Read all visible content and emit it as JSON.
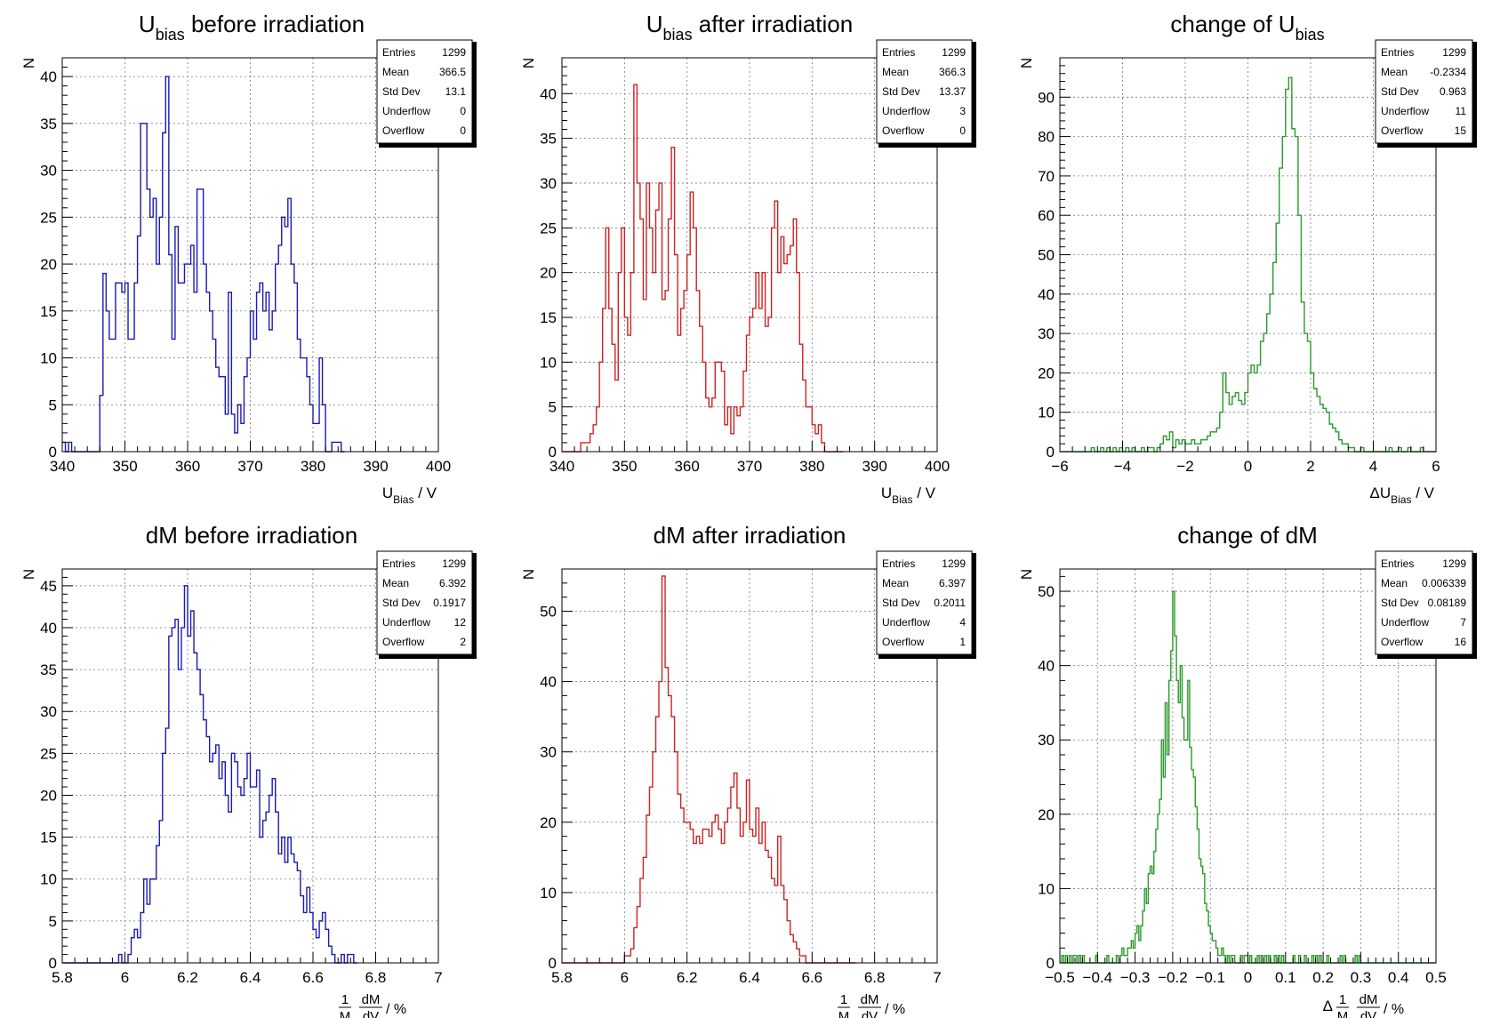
{
  "page": {
    "background": "#ffffff"
  },
  "chart_data": [
    {
      "type": "histogram",
      "title": "U_bias before irradiation",
      "title_parts": {
        "main": "U",
        "sub": "bias",
        "rest": " before irradiation"
      },
      "ylabel": "N",
      "xlabel_parts": {
        "main": "U",
        "sub": "Bias",
        "rest": " / V"
      },
      "xlim": [
        340,
        400
      ],
      "ylim": [
        0,
        42
      ],
      "xticks": [
        340,
        350,
        360,
        370,
        380,
        390,
        400
      ],
      "yticks": [
        0,
        5,
        10,
        15,
        20,
        25,
        30,
        35,
        40
      ],
      "grid": true,
      "color": "#1a1ab5",
      "bin_width": 0.5,
      "counts": [
        1,
        0,
        1,
        0,
        0,
        0,
        0,
        0,
        0,
        0,
        0,
        0,
        6,
        19,
        15,
        12,
        12,
        18,
        18,
        17,
        18,
        12,
        12,
        18,
        23,
        35,
        35,
        28,
        25,
        27,
        20,
        25,
        34,
        40,
        21,
        12,
        24,
        18,
        18,
        20,
        20,
        22,
        17,
        28,
        28,
        20,
        17,
        15,
        12,
        9,
        8,
        8,
        4,
        17,
        4,
        2,
        5,
        3,
        8,
        10,
        15,
        12,
        17,
        18,
        15,
        17,
        13,
        15,
        20,
        22,
        25,
        24,
        27,
        20,
        18,
        12,
        10,
        10,
        8,
        5,
        3,
        3,
        10,
        5,
        0,
        0,
        1,
        1,
        1,
        0
      ]
    },
    {
      "type": "histogram",
      "title": "U_bias after irradiation",
      "title_parts": {
        "main": "U",
        "sub": "bias",
        "rest": " after irradiation"
      },
      "ylabel": "N",
      "xlabel_parts": {
        "main": "U",
        "sub": "Bias",
        "rest": " / V"
      },
      "xlim": [
        340,
        400
      ],
      "ylim": [
        0,
        44
      ],
      "xticks": [
        340,
        350,
        360,
        370,
        380,
        390,
        400
      ],
      "yticks": [
        0,
        5,
        10,
        15,
        20,
        25,
        30,
        35,
        40
      ],
      "grid": true,
      "color": "#cc2222",
      "bin_width": 0.5,
      "counts": [
        0,
        0,
        0,
        0,
        0,
        0,
        1,
        1,
        1,
        2,
        3,
        5,
        10,
        16,
        25,
        16,
        12,
        8,
        20,
        25,
        15,
        13,
        20,
        41,
        30,
        26,
        17,
        30,
        25,
        20,
        27,
        30,
        17,
        18,
        26,
        34,
        22,
        13,
        16,
        18,
        22,
        29,
        25,
        18,
        14,
        10,
        6,
        5,
        6,
        10,
        10,
        9,
        3,
        5,
        2,
        5,
        4,
        5,
        9,
        13,
        15,
        16,
        20,
        16,
        20,
        14,
        15,
        25,
        28,
        20,
        24,
        21,
        22,
        23,
        26,
        20,
        12,
        8,
        5,
        5,
        3,
        2,
        3,
        1,
        0,
        0,
        0,
        0,
        0,
        0
      ]
    },
    {
      "type": "histogram",
      "title": "change of U_bias",
      "title_parts": {
        "main": "change of U",
        "sub": "bias",
        "rest": ""
      },
      "ylabel": "N",
      "xlabel_parts": {
        "main": "ΔU",
        "sub": "Bias",
        "rest": " / V"
      },
      "xlim": [
        -6,
        6
      ],
      "ylim": [
        0,
        100
      ],
      "xticks": [
        -6,
        -4,
        -2,
        0,
        2,
        4,
        6
      ],
      "yticks": [
        0,
        10,
        20,
        30,
        40,
        50,
        60,
        70,
        80,
        90
      ],
      "grid": true,
      "color": "#2a9a2a",
      "bin_width": 0.1,
      "counts": [
        0,
        0,
        0,
        0,
        0,
        0,
        0,
        0,
        0,
        0,
        1,
        0,
        0,
        1,
        0,
        1,
        0,
        1,
        0,
        1,
        0,
        1,
        0,
        1,
        0,
        0,
        1,
        0,
        1,
        1,
        0,
        1,
        2,
        4,
        3,
        5,
        1,
        3,
        2,
        3,
        2,
        2,
        3,
        2,
        2,
        3,
        3,
        4,
        5,
        5,
        6,
        10,
        20,
        15,
        12,
        14,
        15,
        13,
        12,
        15,
        20,
        22,
        20,
        22,
        28,
        30,
        35,
        40,
        48,
        58,
        72,
        80,
        92,
        95,
        82,
        80,
        60,
        38,
        30,
        28,
        20,
        16,
        14,
        12,
        11,
        10,
        7,
        6,
        5,
        3,
        2,
        2,
        1,
        1,
        0,
        0,
        1,
        0,
        0,
        0,
        0,
        0,
        0,
        0,
        0,
        1,
        0,
        0,
        1,
        0,
        0,
        1,
        0,
        0,
        0,
        1,
        0,
        0,
        0,
        0
      ]
    },
    {
      "type": "histogram",
      "title": "dM before irradiation",
      "ylabel": "N",
      "xlabel_parts": {
        "frac_num": "1",
        "frac_den": "M",
        "frac2_num": "dM",
        "frac2_den": "dV",
        "rest": " / %"
      },
      "xlim": [
        5.8,
        7.0
      ],
      "ylim": [
        0,
        47
      ],
      "xticks": [
        5.8,
        6,
        6.2,
        6.4,
        6.6,
        6.8,
        7
      ],
      "yticks": [
        0,
        5,
        10,
        15,
        20,
        25,
        30,
        35,
        40,
        45
      ],
      "grid": true,
      "color": "#1a1ab5",
      "bin_width": 0.01,
      "counts": [
        0,
        0,
        0,
        0,
        0,
        0,
        0,
        0,
        0,
        0,
        0,
        0,
        0,
        0,
        0,
        0,
        0,
        0,
        1,
        0,
        0,
        1,
        3,
        4,
        3,
        6,
        10,
        7,
        10,
        10,
        14,
        17,
        25,
        28,
        39,
        40,
        41,
        35,
        40,
        45,
        39,
        42,
        37,
        35,
        32,
        29,
        27,
        24,
        25,
        26,
        22,
        24,
        20,
        18,
        25,
        24,
        21,
        20,
        22,
        25,
        21,
        21,
        23,
        15,
        17,
        18,
        20,
        22,
        18,
        13,
        15,
        12,
        15,
        13,
        12,
        11,
        8,
        6,
        9,
        6,
        4,
        3,
        5,
        6,
        4,
        2,
        1,
        0,
        0,
        1,
        0,
        1,
        1,
        0
      ]
    },
    {
      "type": "histogram",
      "title": "dM after irradiation",
      "ylabel": "N",
      "xlabel_parts": {
        "frac_num": "1",
        "frac_den": "M",
        "frac2_num": "dM",
        "frac2_den": "dV",
        "rest": " / %"
      },
      "xlim": [
        5.8,
        7.0
      ],
      "ylim": [
        0,
        56
      ],
      "xticks": [
        5.8,
        6,
        6.2,
        6.4,
        6.6,
        6.8,
        7
      ],
      "yticks": [
        0,
        10,
        20,
        30,
        40,
        50
      ],
      "grid": true,
      "color": "#cc2222",
      "bin_width": 0.01,
      "counts": [
        0,
        0,
        0,
        0,
        0,
        0,
        0,
        0,
        0,
        0,
        0,
        0,
        0,
        0,
        0,
        0,
        0,
        0,
        0,
        0,
        1,
        1,
        2,
        5,
        8,
        12,
        15,
        21,
        25,
        30,
        35,
        40,
        55,
        42,
        38,
        35,
        30,
        24,
        22,
        20,
        20,
        19,
        17,
        18,
        17,
        19,
        19,
        18,
        20,
        21,
        19,
        17,
        20,
        22,
        25,
        27,
        22,
        18,
        20,
        26,
        19,
        18,
        22,
        17,
        20,
        16,
        15,
        12,
        11,
        18,
        11,
        9,
        6,
        4,
        3,
        2,
        1,
        1,
        0,
        0,
        0,
        0,
        0,
        0,
        0,
        0,
        0,
        0,
        0,
        0,
        0,
        0,
        0,
        0
      ]
    },
    {
      "type": "histogram",
      "title": "change of dM",
      "ylabel": "N",
      "xlabel_parts": {
        "prefix": "Δ",
        "frac_num": "1",
        "frac_den": "M",
        "frac2_num": "dM",
        "frac2_den": "dV",
        "rest": " / %"
      },
      "xlim": [
        -0.5,
        0.5
      ],
      "ylim": [
        0,
        53
      ],
      "xticks": [
        -0.5,
        -0.4,
        -0.3,
        -0.2,
        -0.1,
        0,
        0.1,
        0.2,
        0.3,
        0.4,
        0.5
      ],
      "yticks": [
        0,
        10,
        20,
        30,
        40,
        50
      ],
      "grid": true,
      "color": "#2a9a2a",
      "bin_width": 0.005,
      "counts": [
        0,
        1,
        0,
        1,
        0,
        1,
        0,
        1,
        1,
        0,
        1,
        0,
        1,
        0,
        0,
        0,
        0,
        0,
        0,
        1,
        0,
        0,
        0,
        0,
        0,
        1,
        0,
        0,
        0,
        0,
        1,
        0,
        1,
        2,
        1,
        1,
        2,
        2,
        3,
        2,
        4,
        5,
        3,
        5,
        7,
        10,
        8,
        12,
        13,
        12,
        15,
        18,
        20,
        22,
        30,
        25,
        35,
        28,
        38,
        42,
        50,
        44,
        38,
        35,
        40,
        33,
        30,
        30,
        38,
        29,
        26,
        25,
        21,
        18,
        14,
        13,
        12,
        8,
        7,
        5,
        4,
        3,
        3,
        2,
        1,
        1,
        2,
        1,
        0,
        1,
        0,
        1,
        1,
        0,
        0,
        0,
        1,
        0,
        1,
        1,
        0,
        1,
        0,
        0,
        0,
        1,
        0,
        1,
        0,
        1,
        0,
        1,
        0,
        0,
        1,
        0,
        1,
        0,
        1,
        0,
        0,
        0,
        0,
        0,
        1,
        0,
        0,
        1,
        0,
        0,
        1,
        0,
        0,
        0,
        1,
        0,
        1,
        0,
        1,
        0,
        0,
        0,
        1,
        0,
        0,
        0,
        0,
        0,
        0,
        1,
        0,
        1,
        0,
        0,
        0,
        0,
        0,
        1,
        0,
        1,
        0,
        0,
        0,
        0,
        0,
        0,
        0,
        0,
        0,
        0,
        0,
        0,
        0,
        0,
        0,
        0,
        0,
        0,
        0,
        0,
        0,
        0,
        0,
        0,
        0,
        0,
        0,
        0,
        0,
        0,
        0,
        0,
        0,
        0,
        0,
        0,
        0,
        0,
        0,
        0,
        0,
        0,
        0,
        0,
        0
      ]
    }
  ],
  "stats_boxes": [
    {
      "rows": [
        {
          "label": "Entries",
          "value": "1299"
        },
        {
          "label": "Mean",
          "value": "366.5"
        },
        {
          "label": "Std Dev",
          "value": "13.1"
        },
        {
          "label": "Underflow",
          "value": "0"
        },
        {
          "label": "Overflow",
          "value": "0"
        }
      ]
    },
    {
      "rows": [
        {
          "label": "Entries",
          "value": "1299"
        },
        {
          "label": "Mean",
          "value": "366.3"
        },
        {
          "label": "Std Dev",
          "value": "13.37"
        },
        {
          "label": "Underflow",
          "value": "3"
        },
        {
          "label": "Overflow",
          "value": "0"
        }
      ]
    },
    {
      "rows": [
        {
          "label": "Entries",
          "value": "1299"
        },
        {
          "label": "Mean",
          "value": "-0.2334"
        },
        {
          "label": "Std Dev",
          "value": "0.963"
        },
        {
          "label": "Underflow",
          "value": "11"
        },
        {
          "label": "Overflow",
          "value": "15"
        }
      ]
    },
    {
      "rows": [
        {
          "label": "Entries",
          "value": "1299"
        },
        {
          "label": "Mean",
          "value": "6.392"
        },
        {
          "label": "Std Dev",
          "value": "0.1917"
        },
        {
          "label": "Underflow",
          "value": "12"
        },
        {
          "label": "Overflow",
          "value": "2"
        }
      ]
    },
    {
      "rows": [
        {
          "label": "Entries",
          "value": "1299"
        },
        {
          "label": "Mean",
          "value": "6.397"
        },
        {
          "label": "Std Dev",
          "value": "0.2011"
        },
        {
          "label": "Underflow",
          "value": "4"
        },
        {
          "label": "Overflow",
          "value": "1"
        }
      ]
    },
    {
      "rows": [
        {
          "label": "Entries",
          "value": "1299"
        },
        {
          "label": "Mean",
          "value": "0.006339"
        },
        {
          "label": "Std Dev",
          "value": "0.08189"
        },
        {
          "label": "Underflow",
          "value": "7"
        },
        {
          "label": "Overflow",
          "value": "16"
        }
      ]
    }
  ]
}
